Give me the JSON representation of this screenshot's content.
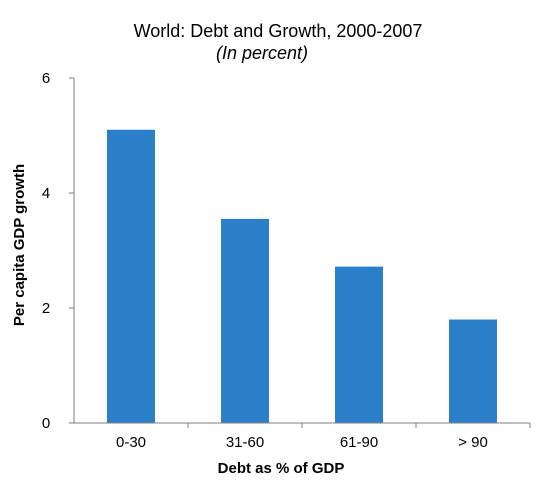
{
  "chart_data": {
    "type": "bar",
    "title": "World: Debt and Growth, 2000-2007",
    "subtitle": "(In percent)",
    "xlabel": "Debt as % of GDP",
    "ylabel": "Per capita GDP growth",
    "categories": [
      "0-30",
      "31-60",
      "61-90",
      "> 90"
    ],
    "values": [
      5.1,
      3.55,
      2.72,
      1.8
    ],
    "ylim": [
      0,
      6
    ],
    "yticks": [
      "0",
      "2",
      "4",
      "6"
    ],
    "grid": false,
    "legend": "none",
    "bar_color": "#2b7fc8"
  }
}
